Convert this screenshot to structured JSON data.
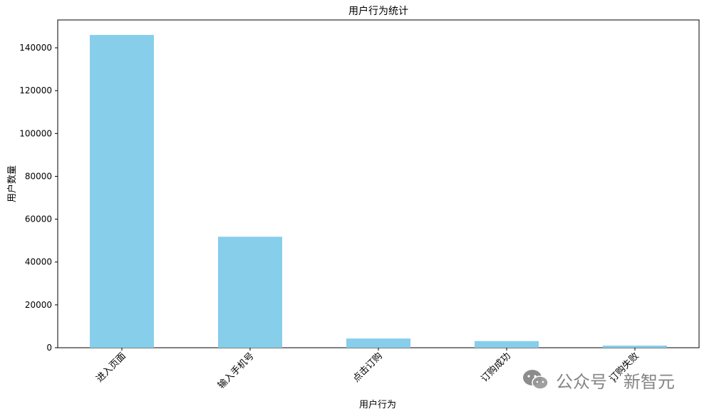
{
  "chart_data": {
    "type": "bar",
    "title": "用户行为统计",
    "xlabel": "用户行为",
    "ylabel": "用户数量",
    "categories": [
      "进入页面",
      "输入手机号",
      "点击订购",
      "订购成功",
      "订购失败"
    ],
    "values": [
      146000,
      51800,
      4300,
      3100,
      1000
    ],
    "ylim": [
      0,
      153000
    ],
    "yticks": [
      0,
      20000,
      40000,
      60000,
      80000,
      100000,
      120000,
      140000
    ],
    "ytick_labels": [
      "0",
      "20000",
      "40000",
      "60000",
      "80000",
      "100000",
      "120000",
      "140000"
    ],
    "bar_color": "#87CEEB",
    "grid": false,
    "legend": "none"
  },
  "watermark": {
    "text": "公众号 · 新智元",
    "icon": "wechat-icon"
  }
}
